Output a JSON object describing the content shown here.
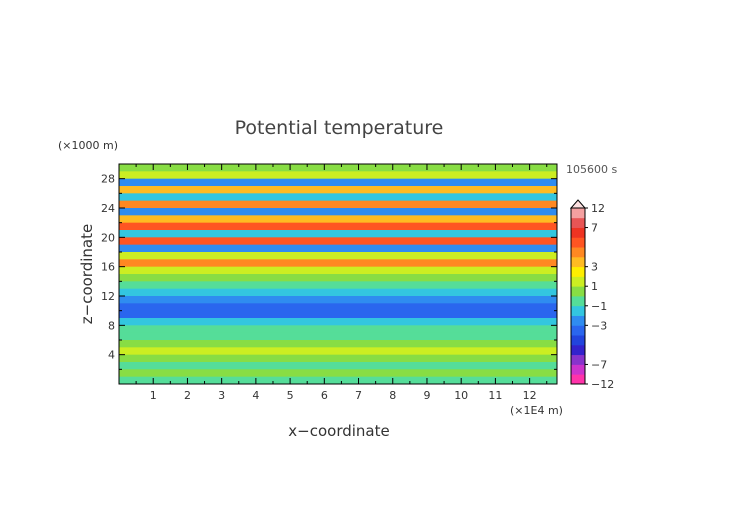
{
  "chart_data": {
    "type": "heatmap",
    "title": "Potential temperature",
    "xlabel": "x−coordinate",
    "ylabel": "z−coordinate",
    "x_unit": "(×1E4 m)",
    "y_unit": "(×1000 m)",
    "time_label": "105600 s",
    "xlim": [
      0,
      12.8
    ],
    "ylim": [
      0,
      30
    ],
    "x_ticks": [
      "1",
      "2",
      "3",
      "4",
      "5",
      "6",
      "7",
      "8",
      "9",
      "10",
      "11",
      "12"
    ],
    "y_ticks": [
      "4",
      "8",
      "12",
      "16",
      "20",
      "24",
      "28"
    ],
    "colorbar": {
      "labels": [
        "12",
        "7",
        "3",
        "1",
        "−1",
        "−3",
        "−7",
        "−12"
      ],
      "levels": [
        -12,
        -9,
        -7,
        -6,
        -5,
        -4,
        -3,
        -2,
        -1,
        0,
        1,
        2,
        3,
        4,
        5,
        6,
        7,
        9,
        12
      ],
      "colors": [
        "#ff33aa",
        "#cc33cc",
        "#8833cc",
        "#3322cc",
        "#2244dd",
        "#2a66ee",
        "#2f8cf0",
        "#33c6e0",
        "#55dd99",
        "#88dd44",
        "#ccee22",
        "#ffee00",
        "#ffbb22",
        "#ff8822",
        "#ff5522",
        "#ee3322",
        "#e85555",
        "#f4a0a0"
      ],
      "extend_top_color": "#fce0e0"
    },
    "bands": [
      {
        "z": 28.5,
        "value": 1.5
      },
      {
        "z": 27.5,
        "value": -2.5
      },
      {
        "z": 26.5,
        "value": 3.5
      },
      {
        "z": 25.5,
        "value": -1.5
      },
      {
        "z": 24.5,
        "value": 4.5
      },
      {
        "z": 23.5,
        "value": -2.5
      },
      {
        "z": 22.5,
        "value": 3.5
      },
      {
        "z": 21.5,
        "value": 5.5
      },
      {
        "z": 20.5,
        "value": -1.5
      },
      {
        "z": 19.5,
        "value": 5.0
      },
      {
        "z": 18.5,
        "value": -2.5
      },
      {
        "z": 17.5,
        "value": 1.5
      },
      {
        "z": 16.5,
        "value": 4.0
      },
      {
        "z": 15.5,
        "value": 1.5
      },
      {
        "z": 14.5,
        "value": 0.5
      },
      {
        "z": 13.5,
        "value": -0.8
      },
      {
        "z": 12.5,
        "value": -1.5
      },
      {
        "z": 11.5,
        "value": -3.0
      },
      {
        "z": 10.5,
        "value": -3.5
      },
      {
        "z": 9.5,
        "value": -3.2
      },
      {
        "z": 8.5,
        "value": -2.0
      },
      {
        "z": 7.5,
        "value": -1.0
      },
      {
        "z": 6.5,
        "value": -0.5
      },
      {
        "z": 5.5,
        "value": 0.5
      },
      {
        "z": 4.5,
        "value": 1.0
      },
      {
        "z": 3.5,
        "value": 0.2
      },
      {
        "z": 2.5,
        "value": -0.3
      },
      {
        "z": 1.5,
        "value": 0.0
      },
      {
        "z": 0.5,
        "value": -0.5
      }
    ]
  }
}
